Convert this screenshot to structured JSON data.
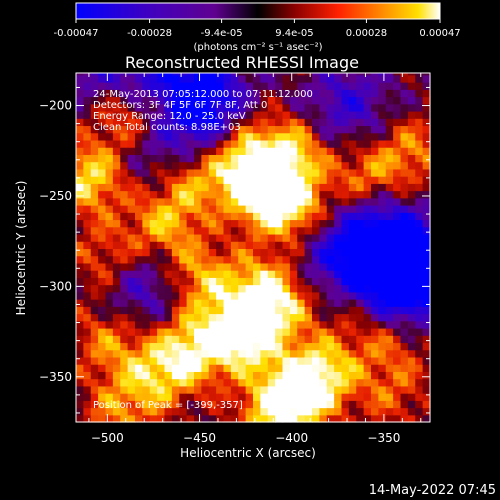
{
  "colorbar": {
    "ticks": [
      "-0.00047",
      "-0.00028",
      "-9.4e-05",
      "9.4e-05",
      "0.00028",
      "0.00047"
    ],
    "tick_values": [
      -0.00047,
      -0.00028,
      -9.4e-05,
      9.4e-05,
      0.00028,
      0.00047
    ],
    "range": [
      -0.00047,
      0.00047
    ],
    "units": "(photons cm⁻² s⁻¹ asec⁻²)",
    "colors": [
      "#0000ff",
      "#4000c0",
      "#600090",
      "#000000",
      "#8a0000",
      "#ff2000",
      "#ff8a00",
      "#ffe000",
      "#ffffff"
    ]
  },
  "chart_data": {
    "type": "heatmap",
    "title": "Reconstructed RHESSI Image",
    "xlabel": "Heliocentric X (arcsec)",
    "ylabel": "Heliocentric Y (arcsec)",
    "xlim": [
      -517,
      -325
    ],
    "ylim": [
      -375,
      -182
    ],
    "xticks": [
      -500,
      -450,
      -400,
      -350
    ],
    "yticks": [
      -200,
      -250,
      -300,
      -350
    ],
    "annotations": {
      "time": "24-May-2013 07:05:12.000 to 07:11:12.000",
      "detectors": "Detectors: 3F 4F 5F 6F 7F 8F, Att 0",
      "energy": "Energy Range: 12.0 - 25.0 keV",
      "clean": "Clean     Total counts: 8.98E+03",
      "peak": "Position of Peak = [-399,-357]"
    },
    "peak": [
      -399,
      -357
    ],
    "hotspots": [
      {
        "x": -510,
        "y": -240,
        "a": 0.9
      },
      {
        "x": -490,
        "y": -205,
        "a": 0.6
      },
      {
        "x": -470,
        "y": -265,
        "a": 0.7
      },
      {
        "x": -455,
        "y": -240,
        "a": 0.75
      },
      {
        "x": -430,
        "y": -220,
        "a": 0.6
      },
      {
        "x": -420,
        "y": -240,
        "a": 1.0
      },
      {
        "x": -410,
        "y": -250,
        "a": 0.85
      },
      {
        "x": -400,
        "y": -225,
        "a": 0.75
      },
      {
        "x": -395,
        "y": -260,
        "a": 0.55
      },
      {
        "x": -360,
        "y": -240,
        "a": 0.6
      },
      {
        "x": -335,
        "y": -225,
        "a": 0.55
      },
      {
        "x": -450,
        "y": -295,
        "a": 0.7
      },
      {
        "x": -430,
        "y": -320,
        "a": 0.6
      },
      {
        "x": -455,
        "y": -335,
        "a": 0.9
      },
      {
        "x": -475,
        "y": -350,
        "a": 0.7
      },
      {
        "x": -500,
        "y": -330,
        "a": 0.55
      },
      {
        "x": -415,
        "y": -300,
        "a": 0.65
      },
      {
        "x": -425,
        "y": -330,
        "a": 0.75
      },
      {
        "x": -405,
        "y": -310,
        "a": 0.6
      },
      {
        "x": -395,
        "y": -357,
        "a": 1.0
      },
      {
        "x": -410,
        "y": -370,
        "a": 0.8
      },
      {
        "x": -380,
        "y": -345,
        "a": 0.65
      },
      {
        "x": -360,
        "y": -310,
        "a": 0.5
      },
      {
        "x": -500,
        "y": -285,
        "a": 0.5
      },
      {
        "x": -495,
        "y": -370,
        "a": 0.5
      },
      {
        "x": -345,
        "y": -330,
        "a": 0.45
      },
      {
        "x": -345,
        "y": -360,
        "a": 0.4
      }
    ],
    "coldspots": [
      {
        "x": -450,
        "y": -190,
        "a": 0.9
      },
      {
        "x": -445,
        "y": -210,
        "a": 0.7
      },
      {
        "x": -480,
        "y": -300,
        "a": 0.6
      },
      {
        "x": -370,
        "y": -200,
        "a": 0.6
      },
      {
        "x": -340,
        "y": -280,
        "a": 1.0
      },
      {
        "x": -350,
        "y": -300,
        "a": 0.9
      },
      {
        "x": -360,
        "y": -270,
        "a": 0.7
      },
      {
        "x": -335,
        "y": -300,
        "a": 0.8
      },
      {
        "x": -380,
        "y": -285,
        "a": 0.55
      },
      {
        "x": -470,
        "y": -230,
        "a": 0.45
      },
      {
        "x": -480,
        "y": -180,
        "a": 0.5
      },
      {
        "x": -505,
        "y": -180,
        "a": 0.4
      }
    ]
  },
  "footer": {
    "date": "14-May-2022 07:45"
  }
}
